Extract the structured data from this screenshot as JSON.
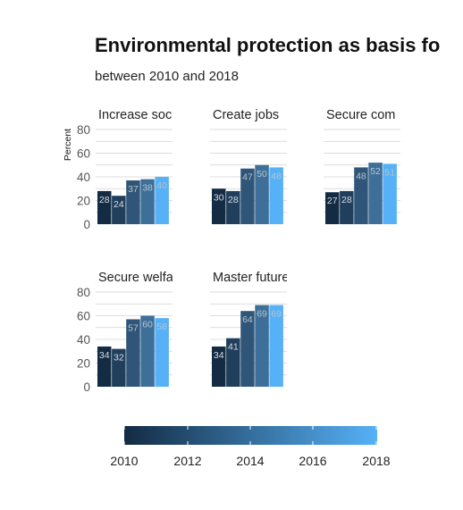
{
  "chart_data": {
    "type": "bar",
    "title": "Environmental protection as basis fo",
    "subtitle": "between 2010 and 2018",
    "ylabel": "Percent",
    "ylim": [
      0,
      85
    ],
    "yticks": [
      "0",
      "20",
      "40",
      "60",
      "80"
    ],
    "categories": [
      "2010",
      "2012",
      "2014",
      "2016",
      "2018"
    ],
    "colors": [
      "#132b43",
      "#213f5d",
      "#2f5679",
      "#3e6f98",
      "#56b1f7"
    ],
    "panels": [
      {
        "title": "Increase soc",
        "values": [
          28,
          24,
          37,
          38,
          40
        ]
      },
      {
        "title": "Create jobs",
        "values": [
          30,
          28,
          47,
          50,
          48
        ]
      },
      {
        "title": "Secure com",
        "values": [
          27,
          28,
          48,
          52,
          51
        ]
      },
      {
        "title": "Secure welfa",
        "values": [
          34,
          32,
          57,
          60,
          58
        ]
      },
      {
        "title": "Master future",
        "values": [
          34,
          41,
          64,
          69,
          69
        ]
      }
    ],
    "legend": {
      "type": "colorbar",
      "range": [
        2010,
        2018
      ],
      "ticks": [
        "2010",
        "2012",
        "2014",
        "2016",
        "2018"
      ],
      "low_color": "#132b43",
      "high_color": "#56b1f7"
    }
  }
}
